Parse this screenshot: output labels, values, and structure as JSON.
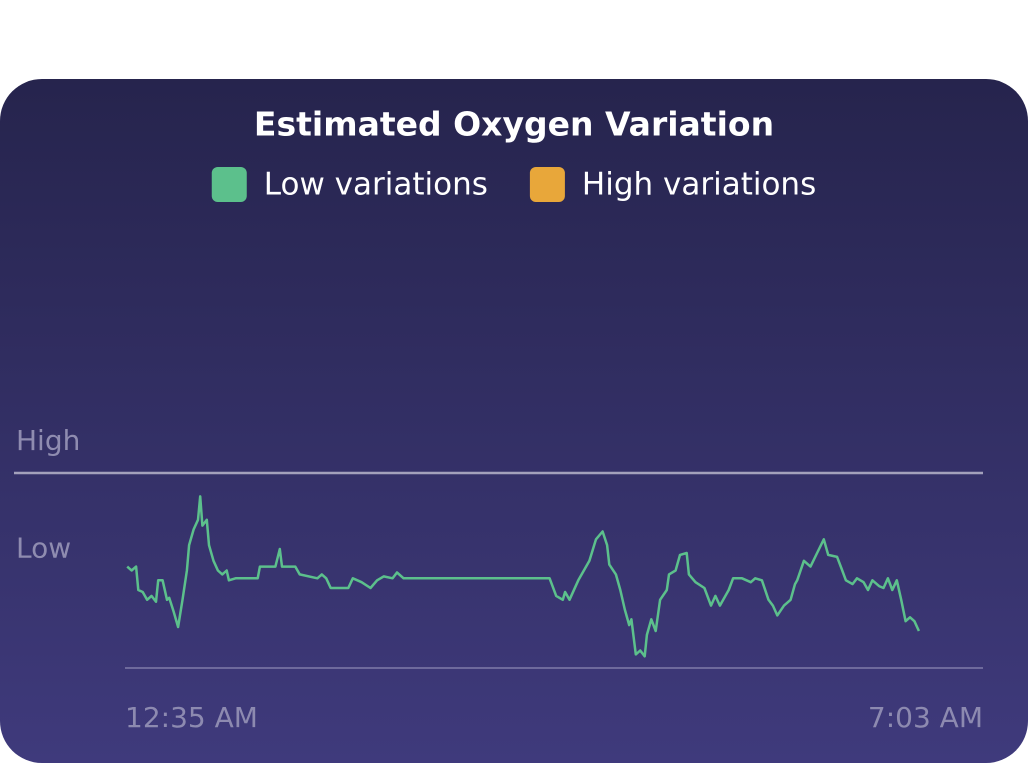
{
  "chart_data": {
    "type": "line",
    "title": "Estimated Oxygen Variation",
    "legend": [
      {
        "name": "Low variations",
        "color": "#5cc08c"
      },
      {
        "name": "High variations",
        "color": "#e8a73a"
      }
    ],
    "xlim": [
      0,
      388
    ],
    "xticks": [
      {
        "value": 0,
        "label": "12:35 AM"
      },
      {
        "value": 388,
        "label": "7:03 AM"
      }
    ],
    "ylim": [
      0,
      100
    ],
    "yticks": [
      {
        "value": 45,
        "label": "Low"
      },
      {
        "value": 100,
        "label": "High"
      }
    ],
    "x": [
      1,
      3,
      5,
      6,
      8,
      10,
      12,
      14,
      15,
      17,
      19,
      20,
      22,
      24,
      26,
      28,
      29,
      31,
      33,
      34,
      35,
      37,
      38,
      40,
      42,
      44,
      46,
      47,
      50,
      60,
      61,
      68,
      70,
      71,
      77,
      79,
      87,
      89,
      91,
      93,
      101,
      103,
      107,
      111,
      114,
      117,
      121,
      123,
      126,
      192,
      195,
      198,
      199,
      201,
      205,
      208,
      210,
      213,
      216,
      218,
      219,
      222,
      224,
      226,
      228,
      229,
      231,
      233,
      235,
      236,
      238,
      240,
      242,
      245,
      246,
      249,
      251,
      254,
      255,
      258,
      262,
      265,
      267,
      269,
      273,
      275,
      279,
      283,
      285,
      288,
      291,
      293,
      295,
      298,
      301,
      303,
      304,
      307,
      310,
      313,
      316,
      318,
      322,
      324,
      326,
      329,
      331,
      334,
      336,
      338,
      341,
      343,
      345,
      347,
      349,
      351,
      353,
      355,
      357,
      359
    ],
    "series": [
      {
        "color": "#5cc08c",
        "values": [
          52,
          50,
          52,
          40,
          39,
          35,
          37,
          34,
          45,
          45,
          35,
          36,
          29,
          21,
          35,
          50,
          63,
          71,
          76,
          88,
          73,
          76,
          63,
          55,
          50,
          48,
          50,
          45,
          46,
          46,
          52,
          52,
          61,
          52,
          52,
          48,
          46,
          48,
          46,
          41,
          41,
          46,
          44,
          41,
          45,
          47,
          46,
          49,
          46,
          46,
          37,
          35,
          39,
          35,
          45,
          51,
          55,
          66,
          70,
          63,
          53,
          48,
          40,
          30,
          22,
          25,
          7,
          9,
          6,
          17,
          25,
          19,
          35,
          40,
          48,
          50,
          58,
          59,
          48,
          44,
          41,
          32,
          37,
          32,
          40,
          46,
          46,
          44,
          46,
          45,
          35,
          32,
          27,
          32,
          35,
          43,
          45,
          55,
          52,
          59,
          66,
          58,
          57,
          51,
          45,
          43,
          46,
          44,
          40,
          45,
          42,
          41,
          46,
          40,
          45,
          35,
          24,
          26,
          24,
          19
        ]
      }
    ]
  }
}
